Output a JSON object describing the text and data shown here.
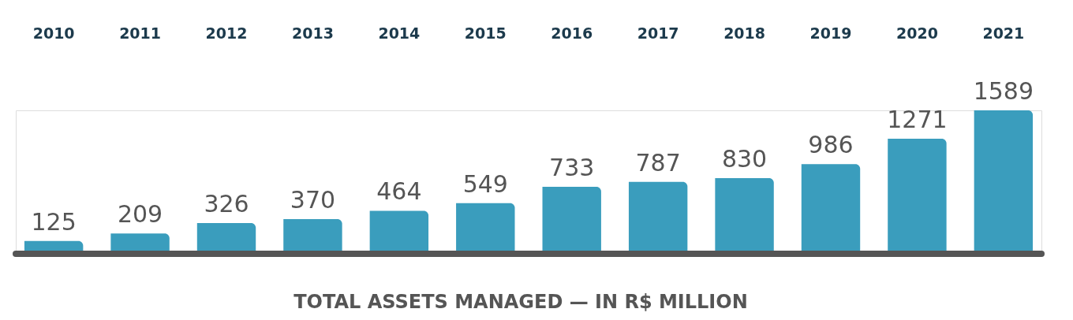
{
  "chart_data": {
    "type": "bar",
    "categories": [
      "2010",
      "2011",
      "2012",
      "2013",
      "2014",
      "2015",
      "2016",
      "2017",
      "2018",
      "2019",
      "2020",
      "2021"
    ],
    "values": [
      125,
      209,
      326,
      370,
      464,
      549,
      733,
      787,
      830,
      986,
      1271,
      1589
    ],
    "color": "#3a9dbd",
    "data_labels": true,
    "xlabel": "TOTAL ASSETS MANAGED — IN R$ MILLION"
  }
}
